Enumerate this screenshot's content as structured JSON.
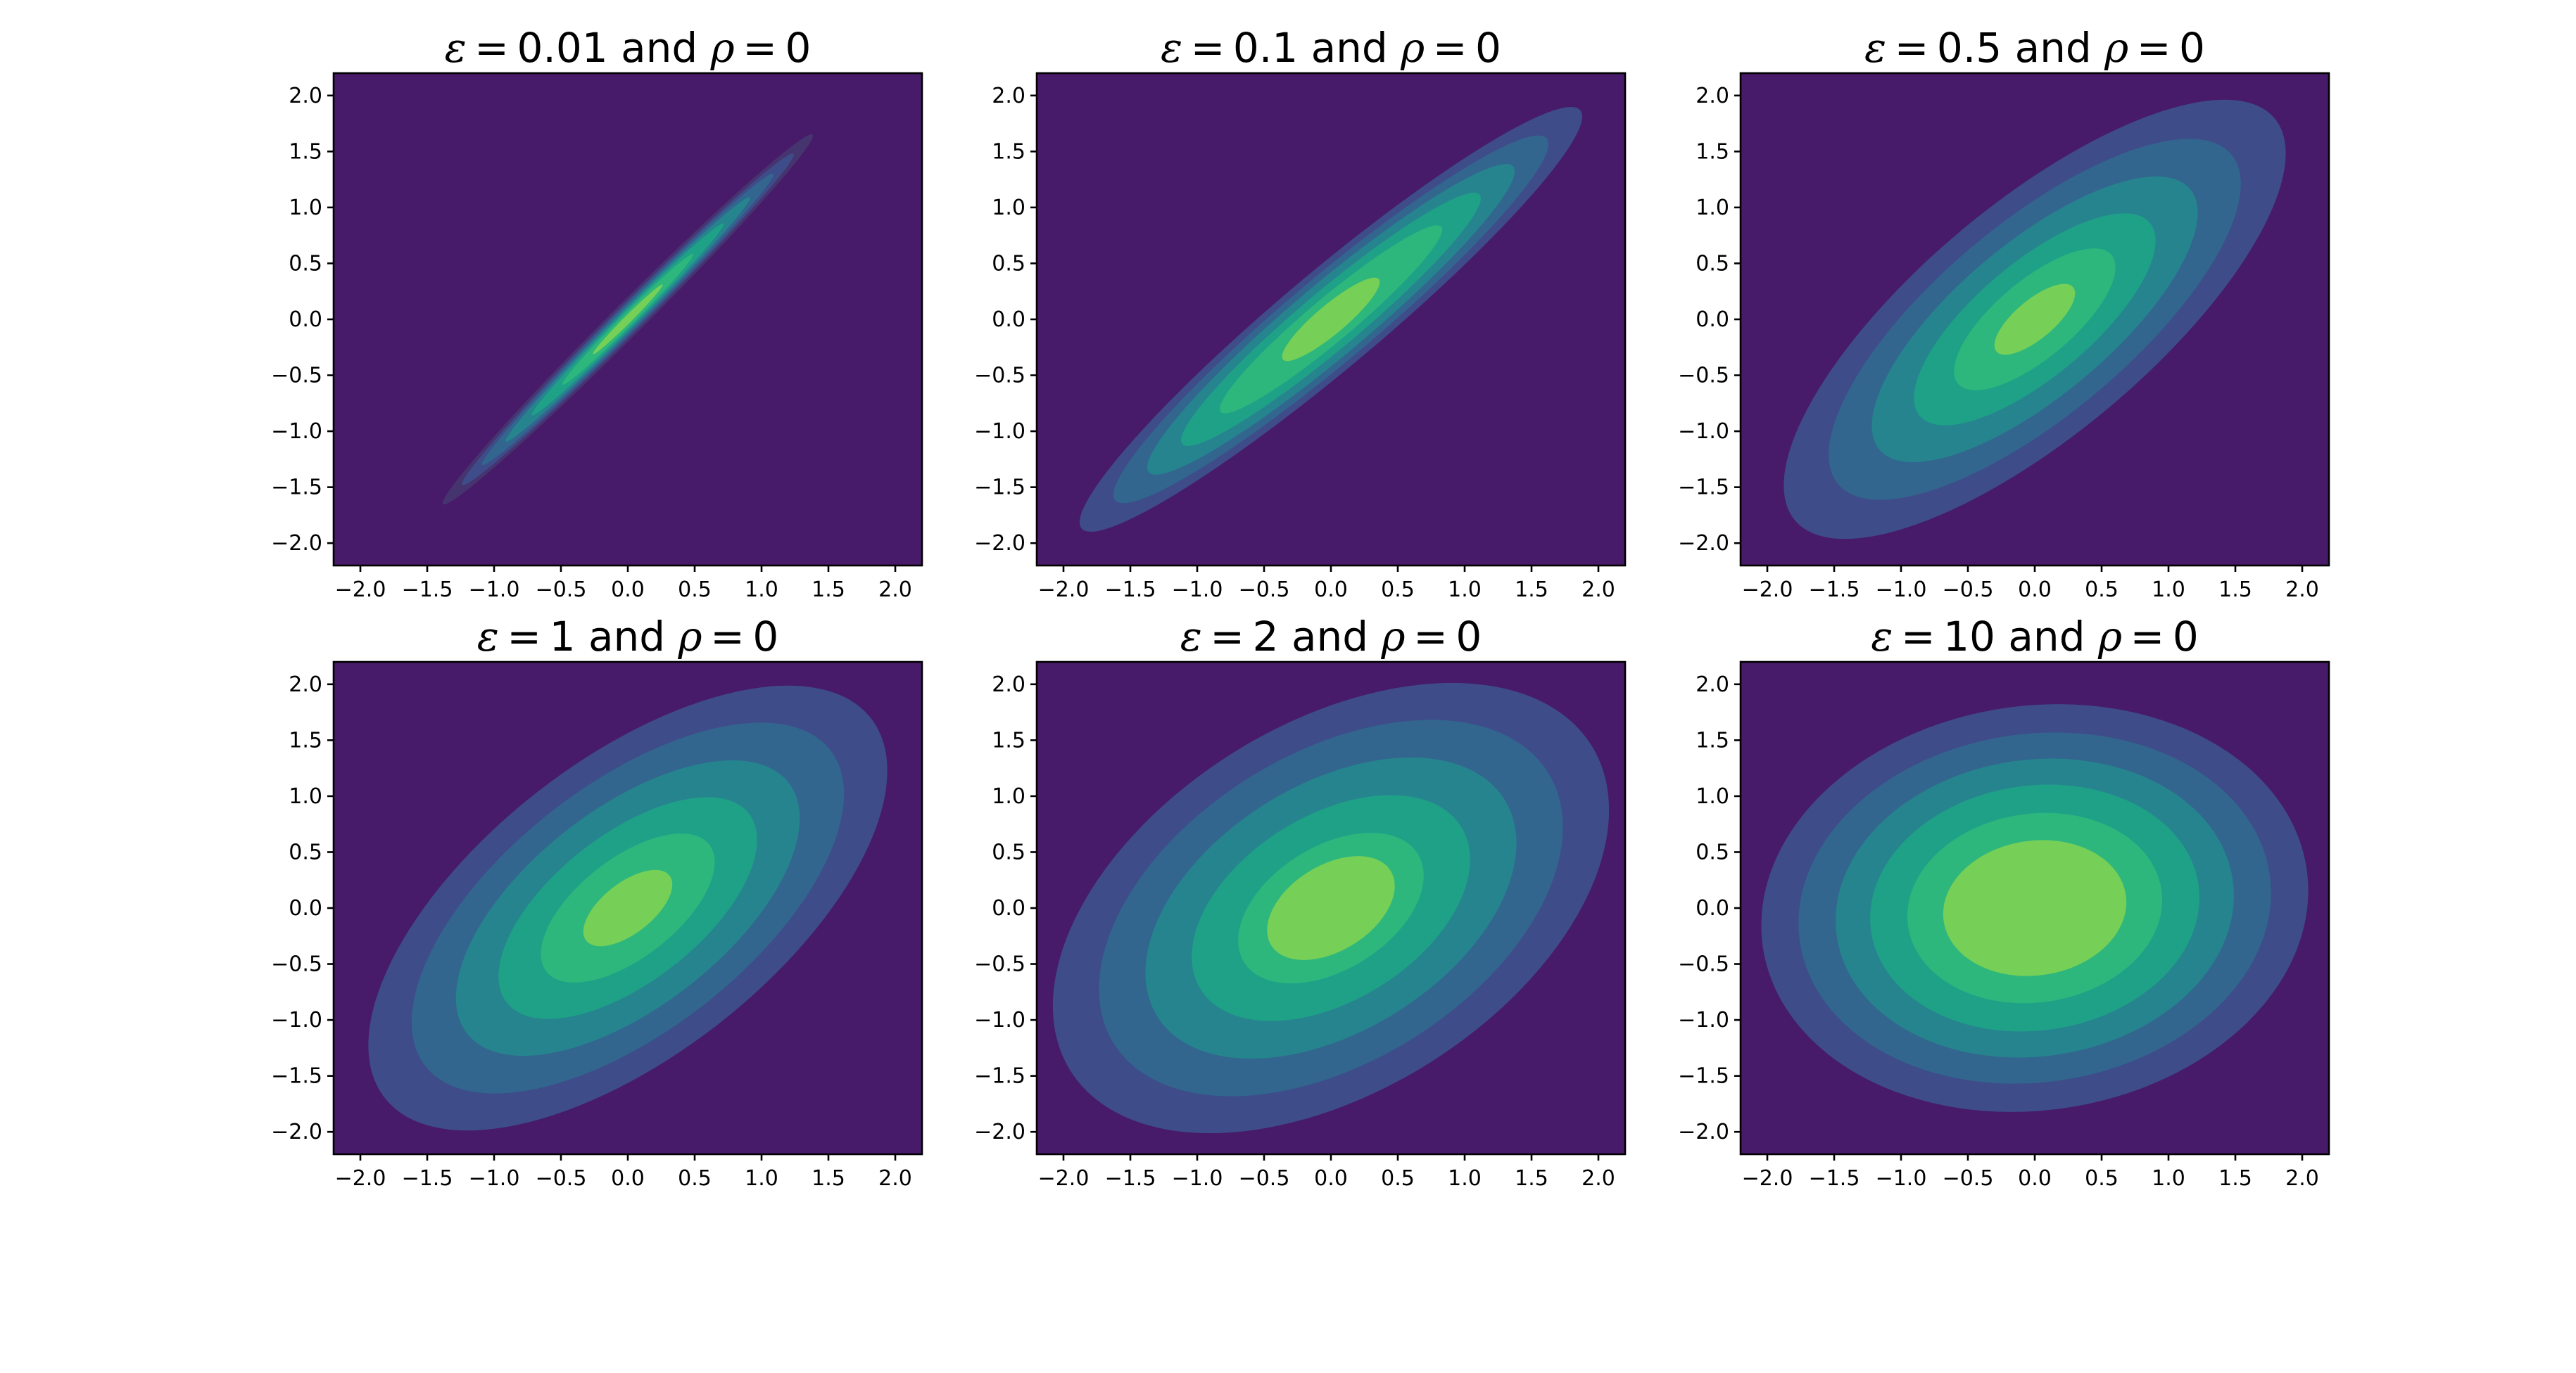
{
  "chart_data": [
    {
      "type": "contour",
      "title_parts": {
        "epsilon": "ε",
        "epsilon_value": "0.01",
        "conjunction": "and",
        "rho": "ρ",
        "rho_value": "0"
      },
      "epsilon": 0.01,
      "rho": 0,
      "xlim": [
        -2.2,
        2.2
      ],
      "ylim": [
        -2.2,
        2.2
      ],
      "xticks": [
        -2.0,
        -1.5,
        -1.0,
        -0.5,
        0.0,
        0.5,
        1.0,
        1.5,
        2.0
      ],
      "yticks": [
        -2.0,
        -1.5,
        -1.0,
        -0.5,
        0.0,
        0.5,
        1.0,
        1.5,
        2.0
      ],
      "tick_labels": [
        "−2.0",
        "−1.5",
        "−1.0",
        "−0.5",
        "0.0",
        "0.5",
        "1.0",
        "1.5",
        "2.0"
      ],
      "ellipse_angle_deg": 45,
      "contour_levels": [
        {
          "major": 2.12,
          "minor": 0.13
        },
        {
          "major": 1.9,
          "minor": 0.11
        },
        {
          "major": 1.67,
          "minor": 0.095
        },
        {
          "major": 1.4,
          "minor": 0.08
        },
        {
          "major": 1.1,
          "minor": 0.065
        },
        {
          "major": 0.75,
          "minor": 0.05
        },
        {
          "major": 0.4,
          "minor": 0.03
        }
      ]
    },
    {
      "type": "contour",
      "title_parts": {
        "epsilon": "ε",
        "epsilon_value": "0.1",
        "conjunction": "and",
        "rho": "ρ",
        "rho_value": "0"
      },
      "epsilon": 0.1,
      "rho": 0,
      "xlim": [
        -2.2,
        2.2
      ],
      "ylim": [
        -2.2,
        2.2
      ],
      "xticks": [
        -2.0,
        -1.5,
        -1.0,
        -0.5,
        0.0,
        0.5,
        1.0,
        1.5,
        2.0
      ],
      "yticks": [
        -2.0,
        -1.5,
        -1.0,
        -0.5,
        0.0,
        0.5,
        1.0,
        1.5,
        2.0
      ],
      "tick_labels": [
        "−2.0",
        "−1.5",
        "−1.0",
        "−0.5",
        "0.0",
        "0.5",
        "1.0",
        "1.5",
        "2.0"
      ],
      "ellipse_angle_deg": 40,
      "contour_levels": [
        {
          "major": 2.6,
          "minor": 0.4
        },
        {
          "major": 2.25,
          "minor": 0.35
        },
        {
          "major": 1.9,
          "minor": 0.3
        },
        {
          "major": 1.55,
          "minor": 0.24
        },
        {
          "major": 1.15,
          "minor": 0.18
        },
        {
          "major": 0.5,
          "minor": 0.12
        }
      ]
    },
    {
      "type": "contour",
      "title_parts": {
        "epsilon": "ε",
        "epsilon_value": "0.5",
        "conjunction": "and",
        "rho": "ρ",
        "rho_value": "0"
      },
      "epsilon": 0.5,
      "rho": 0,
      "xlim": [
        -2.2,
        2.2
      ],
      "ylim": [
        -2.2,
        2.2
      ],
      "xticks": [
        -2.0,
        -1.5,
        -1.0,
        -0.5,
        0.0,
        0.5,
        1.0,
        1.5,
        2.0
      ],
      "yticks": [
        -2.0,
        -1.5,
        -1.0,
        -0.5,
        0.0,
        0.5,
        1.0,
        1.5,
        2.0
      ],
      "tick_labels": [
        "−2.0",
        "−1.5",
        "−1.0",
        "−0.5",
        "0.0",
        "0.5",
        "1.0",
        "1.5",
        "2.0"
      ],
      "ellipse_angle_deg": 40,
      "contour_levels": [
        {
          "major": 2.5,
          "minor": 0.95
        },
        {
          "major": 2.05,
          "minor": 0.79
        },
        {
          "major": 1.62,
          "minor": 0.63
        },
        {
          "major": 1.2,
          "minor": 0.47
        },
        {
          "major": 0.8,
          "minor": 0.32
        },
        {
          "major": 0.4,
          "minor": 0.16
        }
      ]
    },
    {
      "type": "contour",
      "title_parts": {
        "epsilon": "ε",
        "epsilon_value": "1",
        "conjunction": "and",
        "rho": "ρ",
        "rho_value": "0"
      },
      "epsilon": 1,
      "rho": 0,
      "xlim": [
        -2.2,
        2.2
      ],
      "ylim": [
        -2.2,
        2.2
      ],
      "xticks": [
        -2.0,
        -1.5,
        -1.0,
        -0.5,
        0.0,
        0.5,
        1.0,
        1.5,
        2.0
      ],
      "yticks": [
        -2.0,
        -1.5,
        -1.0,
        -0.5,
        0.0,
        0.5,
        1.0,
        1.5,
        2.0
      ],
      "tick_labels": [
        "−2.0",
        "−1.5",
        "−1.0",
        "−0.5",
        "0.0",
        "0.5",
        "1.0",
        "1.5",
        "2.0"
      ],
      "ellipse_angle_deg": 38,
      "contour_levels": [
        {
          "major": 2.45,
          "minor": 1.22
        },
        {
          "major": 2.04,
          "minor": 1.02
        },
        {
          "major": 1.62,
          "minor": 0.82
        },
        {
          "major": 1.22,
          "minor": 0.61
        },
        {
          "major": 0.82,
          "minor": 0.41
        },
        {
          "major": 0.42,
          "minor": 0.21
        }
      ]
    },
    {
      "type": "contour",
      "title_parts": {
        "epsilon": "ε",
        "epsilon_value": "2",
        "conjunction": "and",
        "rho": "ρ",
        "rho_value": "0"
      },
      "epsilon": 2,
      "rho": 0,
      "xlim": [
        -2.2,
        2.2
      ],
      "ylim": [
        -2.2,
        2.2
      ],
      "xticks": [
        -2.0,
        -1.5,
        -1.0,
        -0.5,
        0.0,
        0.5,
        1.0,
        1.5,
        2.0
      ],
      "yticks": [
        -2.0,
        -1.5,
        -1.0,
        -0.5,
        0.0,
        0.5,
        1.0,
        1.5,
        2.0
      ],
      "tick_labels": [
        "−2.0",
        "−1.5",
        "−1.0",
        "−0.5",
        "0.0",
        "0.5",
        "1.0",
        "1.5",
        "2.0"
      ],
      "ellipse_angle_deg": 32,
      "contour_levels": [
        {
          "major": 2.4,
          "minor": 1.55
        },
        {
          "major": 2.0,
          "minor": 1.3
        },
        {
          "major": 1.6,
          "minor": 1.04
        },
        {
          "major": 1.2,
          "minor": 0.78
        },
        {
          "major": 0.8,
          "minor": 0.52
        },
        {
          "major": 0.55,
          "minor": 0.36
        }
      ]
    },
    {
      "type": "contour",
      "title_parts": {
        "epsilon": "ε",
        "epsilon_value": "10",
        "conjunction": "and",
        "rho": "ρ",
        "rho_value": "0"
      },
      "epsilon": 10,
      "rho": 0,
      "xlim": [
        -2.2,
        2.2
      ],
      "ylim": [
        -2.2,
        2.2
      ],
      "xticks": [
        -2.0,
        -1.5,
        -1.0,
        -0.5,
        0.0,
        0.5,
        1.0,
        1.5,
        2.0
      ],
      "yticks": [
        -2.0,
        -1.5,
        -1.0,
        -0.5,
        0.0,
        0.5,
        1.0,
        1.5,
        2.0
      ],
      "tick_labels": [
        "−2.0",
        "−1.5",
        "−1.0",
        "−0.5",
        "0.0",
        "0.5",
        "1.0",
        "1.5",
        "2.0"
      ],
      "ellipse_angle_deg": 8,
      "contour_levels": [
        {
          "major": 2.06,
          "minor": 1.8
        },
        {
          "major": 1.78,
          "minor": 1.55
        },
        {
          "major": 1.5,
          "minor": 1.32
        },
        {
          "major": 1.24,
          "minor": 1.09
        },
        {
          "major": 0.96,
          "minor": 0.84
        },
        {
          "major": 0.69,
          "minor": 0.6
        }
      ]
    }
  ],
  "colors": {
    "background": "#471b69",
    "levels": [
      "#46346f",
      "#3e4c8a",
      "#32668e",
      "#26848e",
      "#1fa187",
      "#2db77d",
      "#76cf56",
      "#d2e11b"
    ]
  }
}
